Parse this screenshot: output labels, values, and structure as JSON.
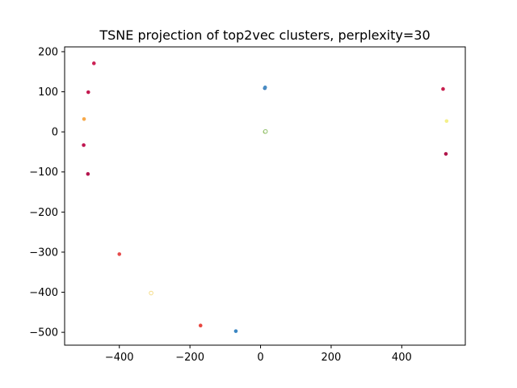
{
  "chart_data": {
    "type": "scatter",
    "title": "TSNE projection of top2vec clusters, perplexity=30",
    "xlabel": "",
    "ylabel": "",
    "xlim": [
      -555,
      580
    ],
    "ylim": [
      -532,
      212
    ],
    "xticks": [
      -400,
      -200,
      0,
      200,
      400
    ],
    "yticks": [
      -500,
      -400,
      -300,
      -200,
      -100,
      0,
      100,
      200
    ],
    "xtick_labels": [
      "−400",
      "−200",
      "0",
      "200",
      "400"
    ],
    "ytick_labels": [
      "−500",
      "−400",
      "−300",
      "−200",
      "−100",
      "0",
      "100",
      "200"
    ],
    "grid": false,
    "legend": "none",
    "points": [
      {
        "x": -472,
        "y": 171,
        "color": "#cc2255"
      },
      {
        "x": -488,
        "y": 99,
        "color": "#c41a50"
      },
      {
        "x": -500,
        "y": 32,
        "color": "#f7a94a"
      },
      {
        "x": -501,
        "y": -33,
        "color": "#bf1550"
      },
      {
        "x": -489,
        "y": -105,
        "color": "#b5174f"
      },
      {
        "x": -400,
        "y": -305,
        "color": "#e64b4b"
      },
      {
        "x": -310,
        "y": -402,
        "color": "#f5dd8a",
        "hollow": true
      },
      {
        "x": -170,
        "y": -483,
        "color": "#e8463f"
      },
      {
        "x": -70,
        "y": -497,
        "color": "#3a86c2"
      },
      {
        "x": 12,
        "y": 109,
        "color": "#3a7ab8"
      },
      {
        "x": 13,
        "y": 111,
        "color": "#4a8dc4"
      },
      {
        "x": 12,
        "y": 0,
        "color": "#a9c66a"
      },
      {
        "x": 14,
        "y": 1,
        "color": "#8fbf6a",
        "hollow": true
      },
      {
        "x": 517,
        "y": 107,
        "color": "#c8204f"
      },
      {
        "x": 527,
        "y": 27,
        "color": "#f4f08a"
      },
      {
        "x": 525,
        "y": -55,
        "color": "#b0154a"
      }
    ]
  }
}
